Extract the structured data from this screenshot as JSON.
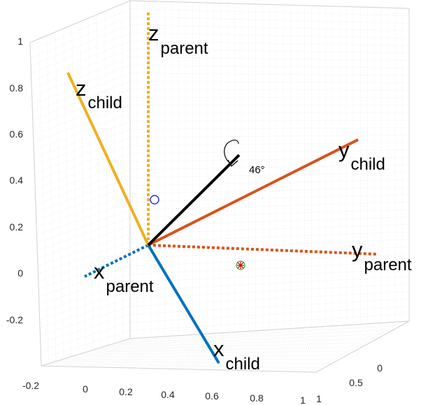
{
  "chart_data": {
    "type": "line",
    "grid": true,
    "z_ticks": [
      "1",
      "0.8",
      "0.6",
      "0.4",
      "0.2",
      "0",
      "-0.2"
    ],
    "x_ticks": [
      "-0.2",
      "0",
      "0.2",
      "0.4",
      "0.6",
      "0.8",
      "1"
    ],
    "y_ticks": [
      "0",
      "0.5",
      "1"
    ],
    "colors": {
      "x": "#0072BD",
      "y": "#D95319",
      "z": "#EDB120",
      "rotation_axis": "#000000",
      "grid": "#dcdcdc",
      "box": "#cfcfcf"
    },
    "labels": {
      "x_parent": {
        "main": "x",
        "sub": "parent"
      },
      "y_parent": {
        "main": "y",
        "sub": "parent"
      },
      "z_parent": {
        "main": "z",
        "sub": "parent"
      },
      "x_child": {
        "main": "x",
        "sub": "child"
      },
      "y_child": {
        "main": "y",
        "sub": "child"
      },
      "z_child": {
        "main": "z",
        "sub": "child"
      }
    },
    "rotation_angle_label": "46°",
    "series": [
      {
        "name": "x_parent",
        "style": "dotted",
        "color": "x"
      },
      {
        "name": "y_parent",
        "style": "dotted",
        "color": "y"
      },
      {
        "name": "z_parent",
        "style": "dotted",
        "color": "z"
      },
      {
        "name": "x_child",
        "style": "solid",
        "color": "x"
      },
      {
        "name": "y_child",
        "style": "solid",
        "color": "y"
      },
      {
        "name": "z_child",
        "style": "solid",
        "color": "z"
      },
      {
        "name": "rotation_axis",
        "style": "solid",
        "color": "rotation_axis"
      }
    ],
    "markers": [
      {
        "type": "circle",
        "color": "#0000CC"
      },
      {
        "type": "circle-asterisk",
        "color": "#33AA33",
        "inner_color": "#CC0000"
      }
    ]
  }
}
